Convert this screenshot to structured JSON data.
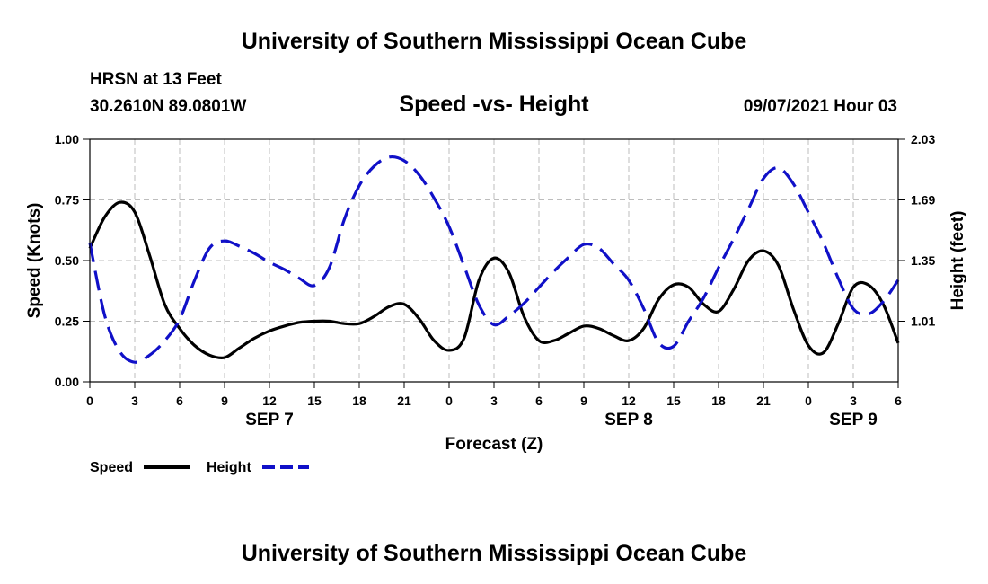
{
  "page": {
    "title_top": "University of Southern Mississippi Ocean Cube",
    "title_bottom": "University of Southern Mississippi Ocean Cube",
    "station": "HRSN at 13 Feet",
    "coords": "30.2610N  89.0801W",
    "datetime": "09/07/2021 Hour 03"
  },
  "chart_data": {
    "type": "line",
    "title": "Speed -vs- Height",
    "xlabel": "Forecast (Z)",
    "ylabel_left": "Speed (Knots)",
    "ylabel_right": "Height (feet)",
    "x_range": [
      0,
      54
    ],
    "ylim_left": [
      0,
      1
    ],
    "ylim_right": [
      0.67,
      2.03
    ],
    "grid": true,
    "x_ticks": [
      {
        "x": 0,
        "label": "0"
      },
      {
        "x": 3,
        "label": "3"
      },
      {
        "x": 6,
        "label": "6"
      },
      {
        "x": 9,
        "label": "9"
      },
      {
        "x": 12,
        "label": "12"
      },
      {
        "x": 15,
        "label": "15"
      },
      {
        "x": 18,
        "label": "18"
      },
      {
        "x": 21,
        "label": "21"
      },
      {
        "x": 24,
        "label": "0"
      },
      {
        "x": 27,
        "label": "3"
      },
      {
        "x": 30,
        "label": "6"
      },
      {
        "x": 33,
        "label": "9"
      },
      {
        "x": 36,
        "label": "12"
      },
      {
        "x": 39,
        "label": "15"
      },
      {
        "x": 42,
        "label": "18"
      },
      {
        "x": 45,
        "label": "21"
      },
      {
        "x": 48,
        "label": "0"
      },
      {
        "x": 51,
        "label": "3"
      },
      {
        "x": 54,
        "label": "6"
      }
    ],
    "date_labels": [
      {
        "x": 12,
        "label": "SEP 7"
      },
      {
        "x": 36,
        "label": "SEP 8"
      },
      {
        "x": 51,
        "label": "SEP 9"
      }
    ],
    "y_ticks_left": [
      {
        "v": 0,
        "label": "0.00"
      },
      {
        "v": 0.25,
        "label": "0.25"
      },
      {
        "v": 0.5,
        "label": "0.50"
      },
      {
        "v": 0.75,
        "label": "0.75"
      },
      {
        "v": 1.0,
        "label": "1.00"
      }
    ],
    "y_ticks_right": [
      {
        "v": 1.01,
        "label": "1.01"
      },
      {
        "v": 1.35,
        "label": "1.35"
      },
      {
        "v": 1.69,
        "label": "1.69"
      },
      {
        "v": 2.03,
        "label": "2.03"
      }
    ],
    "series": [
      {
        "name": "Speed",
        "axis": "left",
        "color": "#000000",
        "dashed": false,
        "points": [
          [
            0,
            0.55
          ],
          [
            1,
            0.68
          ],
          [
            2,
            0.74
          ],
          [
            3,
            0.7
          ],
          [
            4,
            0.52
          ],
          [
            5,
            0.32
          ],
          [
            6,
            0.22
          ],
          [
            7,
            0.15
          ],
          [
            8,
            0.11
          ],
          [
            9,
            0.1
          ],
          [
            10,
            0.14
          ],
          [
            11,
            0.18
          ],
          [
            12,
            0.21
          ],
          [
            13,
            0.23
          ],
          [
            14,
            0.245
          ],
          [
            15,
            0.25
          ],
          [
            16,
            0.25
          ],
          [
            17,
            0.24
          ],
          [
            18,
            0.24
          ],
          [
            19,
            0.27
          ],
          [
            20,
            0.31
          ],
          [
            21,
            0.32
          ],
          [
            22,
            0.26
          ],
          [
            23,
            0.17
          ],
          [
            24,
            0.13
          ],
          [
            25,
            0.18
          ],
          [
            26,
            0.42
          ],
          [
            27,
            0.51
          ],
          [
            28,
            0.45
          ],
          [
            29,
            0.27
          ],
          [
            30,
            0.17
          ],
          [
            31,
            0.17
          ],
          [
            32,
            0.2
          ],
          [
            33,
            0.23
          ],
          [
            34,
            0.22
          ],
          [
            35,
            0.19
          ],
          [
            36,
            0.17
          ],
          [
            37,
            0.22
          ],
          [
            38,
            0.34
          ],
          [
            39,
            0.4
          ],
          [
            40,
            0.39
          ],
          [
            41,
            0.32
          ],
          [
            42,
            0.29
          ],
          [
            43,
            0.38
          ],
          [
            44,
            0.5
          ],
          [
            45,
            0.54
          ],
          [
            46,
            0.48
          ],
          [
            47,
            0.3
          ],
          [
            48,
            0.15
          ],
          [
            49,
            0.12
          ],
          [
            50,
            0.24
          ],
          [
            51,
            0.39
          ],
          [
            52,
            0.4
          ],
          [
            53,
            0.32
          ],
          [
            54,
            0.16
          ]
        ]
      },
      {
        "name": "Height",
        "axis": "right",
        "color": "#1010c8",
        "dashed": true,
        "points": [
          [
            0,
            1.45
          ],
          [
            1,
            1.04
          ],
          [
            2,
            0.84
          ],
          [
            3,
            0.78
          ],
          [
            4,
            0.82
          ],
          [
            5,
            0.9
          ],
          [
            6,
            1.02
          ],
          [
            7,
            1.24
          ],
          [
            8,
            1.42
          ],
          [
            9,
            1.46
          ],
          [
            10,
            1.43
          ],
          [
            11,
            1.39
          ],
          [
            12,
            1.34
          ],
          [
            13,
            1.3
          ],
          [
            14,
            1.25
          ],
          [
            15,
            1.21
          ],
          [
            16,
            1.31
          ],
          [
            17,
            1.58
          ],
          [
            18,
            1.77
          ],
          [
            19,
            1.88
          ],
          [
            20,
            1.93
          ],
          [
            21,
            1.91
          ],
          [
            22,
            1.83
          ],
          [
            23,
            1.7
          ],
          [
            24,
            1.54
          ],
          [
            25,
            1.32
          ],
          [
            26,
            1.1
          ],
          [
            27,
            0.99
          ],
          [
            28,
            1.04
          ],
          [
            29,
            1.11
          ],
          [
            30,
            1.2
          ],
          [
            31,
            1.29
          ],
          [
            32,
            1.37
          ],
          [
            33,
            1.44
          ],
          [
            34,
            1.42
          ],
          [
            35,
            1.33
          ],
          [
            36,
            1.24
          ],
          [
            37,
            1.08
          ],
          [
            38,
            0.89
          ],
          [
            39,
            0.87
          ],
          [
            40,
            1.01
          ],
          [
            41,
            1.14
          ],
          [
            42,
            1.31
          ],
          [
            43,
            1.47
          ],
          [
            44,
            1.64
          ],
          [
            45,
            1.81
          ],
          [
            46,
            1.87
          ],
          [
            47,
            1.78
          ],
          [
            48,
            1.62
          ],
          [
            49,
            1.45
          ],
          [
            50,
            1.25
          ],
          [
            51,
            1.08
          ],
          [
            52,
            1.05
          ],
          [
            53,
            1.12
          ],
          [
            54,
            1.24
          ]
        ]
      }
    ],
    "legend": [
      {
        "label": "Speed",
        "color": "#000000",
        "dashed": false
      },
      {
        "label": "Height",
        "color": "#1010c8",
        "dashed": true
      }
    ]
  }
}
